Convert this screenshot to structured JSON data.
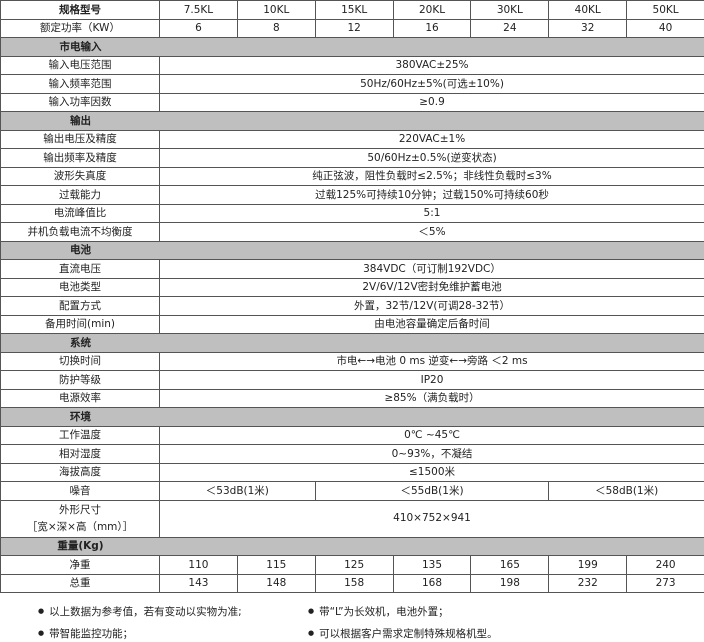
{
  "header": {
    "label": "规格型号",
    "models": [
      "7.5KL",
      "10KL",
      "15KL",
      "20KL",
      "30KL",
      "40KL",
      "50KL"
    ]
  },
  "rated_power": {
    "label": "额定功率（KW）",
    "values": [
      "6",
      "8",
      "12",
      "16",
      "24",
      "32",
      "40"
    ]
  },
  "sections": [
    {
      "title": "市电输入",
      "rows": [
        {
          "label": "输入电压范围",
          "cells": [
            {
              "text": "380VAC±25%",
              "span": 7
            }
          ]
        },
        {
          "label": "输入频率范围",
          "cells": [
            {
              "text": "50Hz/60Hz±5%(可选±10%)",
              "span": 7
            }
          ]
        },
        {
          "label": "输入功率因数",
          "cells": [
            {
              "text": "≥0.9",
              "span": 7
            }
          ]
        }
      ]
    },
    {
      "title": "输出",
      "rows": [
        {
          "label": "输出电压及精度",
          "cells": [
            {
              "text": "220VAC±1%",
              "span": 7
            }
          ]
        },
        {
          "label": "输出频率及精度",
          "cells": [
            {
              "text": "50/60Hz±0.5%(逆变状态)",
              "span": 7
            }
          ]
        },
        {
          "label": "波形失真度",
          "cells": [
            {
              "text": "纯正弦波，阻性负载时≤2.5%；非线性负载时≤3%",
              "span": 7
            }
          ]
        },
        {
          "label": "过载能力",
          "cells": [
            {
              "text": "过载125%可持续10分钟；过载150%可持续60秒",
              "span": 7
            }
          ]
        },
        {
          "label": "电流峰值比",
          "cells": [
            {
              "text": "5:1",
              "span": 7
            }
          ]
        },
        {
          "label": "并机负载电流不均衡度",
          "cells": [
            {
              "text": "＜5%",
              "span": 7
            }
          ]
        }
      ]
    },
    {
      "title": "电池",
      "rows": [
        {
          "label": "直流电压",
          "cells": [
            {
              "text": "384VDC（可订制192VDC）",
              "span": 7
            }
          ]
        },
        {
          "label": "电池类型",
          "cells": [
            {
              "text": "2V/6V/12V密封免维护蓄电池",
              "span": 7
            }
          ]
        },
        {
          "label": "配置方式",
          "cells": [
            {
              "text": "外置，32节/12V(可调28-32节）",
              "span": 7
            }
          ]
        },
        {
          "label": "备用时间(min)",
          "cells": [
            {
              "text": "由电池容量确定后备时间",
              "span": 7
            }
          ]
        }
      ]
    },
    {
      "title": "系统",
      "rows": [
        {
          "label": "切换时间",
          "cells": [
            {
              "text": "市电←→电池 0 ms   逆变←→旁路 ＜2 ms",
              "span": 7
            }
          ]
        },
        {
          "label": "防护等级",
          "cells": [
            {
              "text": "IP20",
              "span": 7
            }
          ]
        },
        {
          "label": "电源效率",
          "cells": [
            {
              "text": "≥85%（满负载时）",
              "span": 7
            }
          ]
        }
      ]
    },
    {
      "title": "环境",
      "rows": [
        {
          "label": "工作温度",
          "cells": [
            {
              "text": "0℃ ~45℃",
              "span": 7
            }
          ]
        },
        {
          "label": "相对湿度",
          "cells": [
            {
              "text": "0~93%，不凝结",
              "span": 7
            }
          ]
        },
        {
          "label": "海拔高度",
          "cells": [
            {
              "text": "≤1500米",
              "span": 7
            }
          ]
        },
        {
          "label": "噪音",
          "cells": [
            {
              "text": "＜53dB(1米)",
              "span": 2
            },
            {
              "text": "＜55dB(1米)",
              "span": 3
            },
            {
              "text": "＜58dB(1米)",
              "span": 2
            }
          ]
        },
        {
          "label": "外形尺寸\n［宽×深×高（mm）］",
          "tall": true,
          "cells": [
            {
              "text": "410×752×941",
              "span": 7
            }
          ]
        }
      ]
    },
    {
      "title": "重量(Kg)",
      "rows": [
        {
          "label": "净重",
          "cells": [
            {
              "text": "110",
              "span": 1
            },
            {
              "text": "115",
              "span": 1
            },
            {
              "text": "125",
              "span": 1
            },
            {
              "text": "135",
              "span": 1
            },
            {
              "text": "165",
              "span": 1
            },
            {
              "text": "199",
              "span": 1
            },
            {
              "text": "240",
              "span": 1
            }
          ]
        },
        {
          "label": "总重",
          "cells": [
            {
              "text": "143",
              "span": 1
            },
            {
              "text": "148",
              "span": 1
            },
            {
              "text": "158",
              "span": 1
            },
            {
              "text": "168",
              "span": 1
            },
            {
              "text": "198",
              "span": 1
            },
            {
              "text": "232",
              "span": 1
            },
            {
              "text": "273",
              "span": 1
            }
          ]
        }
      ]
    }
  ],
  "notes": [
    "以上数据为参考值，若有变动以实物为准;",
    "带“L”为长效机，电池外置；",
    "带智能监控功能；",
    "可以根据客户需求定制特殊规格机型。"
  ],
  "colors": {
    "section_bg": "#bfbfbf",
    "border": "#555555"
  }
}
